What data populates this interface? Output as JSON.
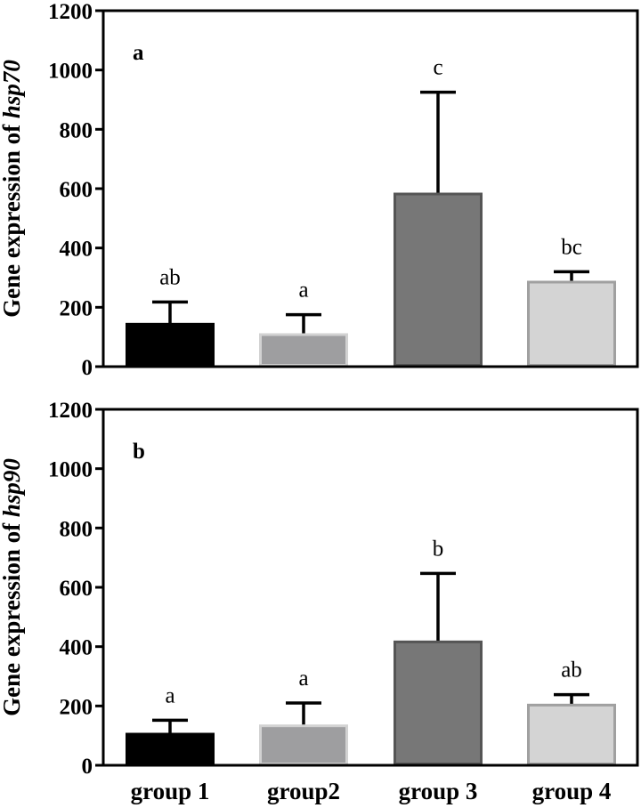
{
  "chart_data": [
    {
      "type": "bar",
      "panel_label": "a",
      "ylabel_prefix": "Gene expression of ",
      "ylabel_gene": "hsp70",
      "xlabel": "",
      "ylim": [
        0,
        1200
      ],
      "yticks": [
        0,
        200,
        400,
        600,
        800,
        1000,
        1200
      ],
      "categories": [
        "group 1",
        "group2",
        "group 3",
        "group 4"
      ],
      "show_category_labels": false,
      "values": [
        143,
        108,
        582,
        285
      ],
      "error_upper": [
        218,
        175,
        925,
        320
      ],
      "significance": [
        "ab",
        "a",
        "c",
        "bc"
      ],
      "bar_colors": [
        "#000000",
        "#9e9ea0",
        "#777777",
        "#d4d4d4"
      ],
      "bar_edge_colors": [
        "#000000",
        "#d2d2d2",
        "#555555",
        "#a0a0a0"
      ]
    },
    {
      "type": "bar",
      "panel_label": "b",
      "ylabel_prefix": "Gene expression of ",
      "ylabel_gene": "hsp90",
      "xlabel": "",
      "ylim": [
        0,
        1200
      ],
      "yticks": [
        0,
        200,
        400,
        600,
        800,
        1000,
        1200
      ],
      "categories": [
        "group 1",
        "group2",
        "group 3",
        "group 4"
      ],
      "show_category_labels": true,
      "values": [
        105,
        133,
        416,
        203
      ],
      "error_upper": [
        152,
        210,
        647,
        238
      ],
      "significance": [
        "a",
        "a",
        "b",
        "ab"
      ],
      "bar_colors": [
        "#000000",
        "#9e9ea0",
        "#777777",
        "#d4d4d4"
      ],
      "bar_edge_colors": [
        "#000000",
        "#d2d2d2",
        "#555555",
        "#a0a0a0"
      ]
    }
  ]
}
